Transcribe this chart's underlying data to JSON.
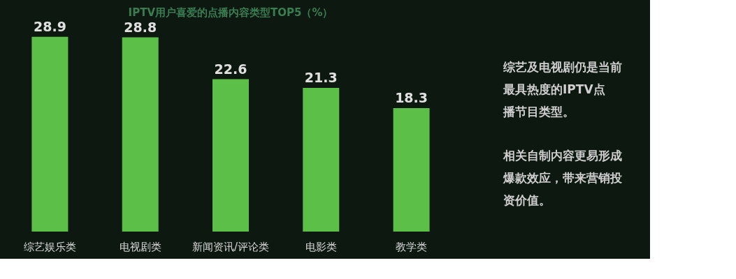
{
  "chart_data": {
    "type": "bar",
    "title": "IPTV用户喜爱的点播内容类型TOP5（%）",
    "categories": [
      "综艺娱乐类",
      "电视剧类",
      "新闻资讯/评论类",
      "电影类",
      "教学类"
    ],
    "values": [
      28.9,
      28.8,
      22.6,
      21.3,
      18.3
    ],
    "color": "#5bbf48",
    "data_labels": true,
    "grid": false,
    "annotations": [
      "综艺及电视剧仍是当前最具热度的IPTV点播节目类型。",
      "相关自制内容更易形成爆款效应，带来营销投资价值。"
    ]
  }
}
